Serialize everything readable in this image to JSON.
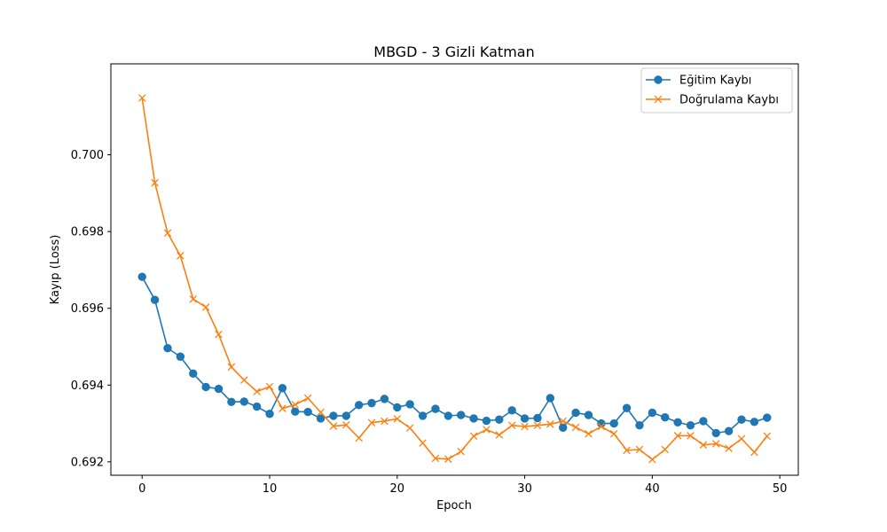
{
  "chart_data": {
    "type": "line",
    "title": "MBGD - 3 Gizli Katman",
    "xlabel": "Epoch",
    "ylabel": "Kayıp (Loss)",
    "xlim": [
      -2.45,
      51.45
    ],
    "ylim": [
      0.69165,
      0.70237
    ],
    "xticks": [
      0,
      10,
      20,
      30,
      40,
      50
    ],
    "yticks": [
      0.692,
      0.694,
      0.696,
      0.698,
      0.7
    ],
    "ytick_labels": [
      "0.692",
      "0.694",
      "0.696",
      "0.698",
      "0.700"
    ],
    "grid": false,
    "legend_position": "top-right",
    "x": [
      0,
      1,
      2,
      3,
      4,
      5,
      6,
      7,
      8,
      9,
      10,
      11,
      12,
      13,
      14,
      15,
      16,
      17,
      18,
      19,
      20,
      21,
      22,
      23,
      24,
      25,
      26,
      27,
      28,
      29,
      30,
      31,
      32,
      33,
      34,
      35,
      36,
      37,
      38,
      39,
      40,
      41,
      42,
      43,
      44,
      45,
      46,
      47,
      48,
      49
    ],
    "series": [
      {
        "name": "Eğitim Kaybı",
        "color": "#1f77b4",
        "marker": "circle",
        "values": [
          0.69682,
          0.69622,
          0.69496,
          0.69474,
          0.6943,
          0.69395,
          0.6939,
          0.69356,
          0.69357,
          0.69344,
          0.69325,
          0.69392,
          0.69331,
          0.6933,
          0.69313,
          0.6932,
          0.6932,
          0.69348,
          0.69353,
          0.69364,
          0.69342,
          0.6935,
          0.6932,
          0.69338,
          0.6932,
          0.69322,
          0.69313,
          0.69307,
          0.6931,
          0.69334,
          0.69313,
          0.69314,
          0.69366,
          0.69289,
          0.69328,
          0.69322,
          0.693,
          0.693,
          0.6934,
          0.69295,
          0.69328,
          0.69316,
          0.69303,
          0.69295,
          0.69306,
          0.69275,
          0.6928,
          0.6931,
          0.69304,
          0.69315
        ]
      },
      {
        "name": "Doğrulama Kaybı",
        "color": "#ff7f0e",
        "marker": "x",
        "values": [
          0.70148,
          0.69927,
          0.69796,
          0.69737,
          0.69624,
          0.69603,
          0.69532,
          0.69447,
          0.69413,
          0.69383,
          0.69396,
          0.69339,
          0.69349,
          0.69366,
          0.69329,
          0.69293,
          0.69296,
          0.69262,
          0.69302,
          0.69306,
          0.69312,
          0.69288,
          0.69249,
          0.69209,
          0.69207,
          0.69227,
          0.69267,
          0.69284,
          0.6927,
          0.69295,
          0.69292,
          0.69295,
          0.69298,
          0.69306,
          0.6929,
          0.69273,
          0.69292,
          0.69273,
          0.6923,
          0.69232,
          0.69206,
          0.69232,
          0.69268,
          0.69268,
          0.69244,
          0.69247,
          0.69235,
          0.6926,
          0.69225,
          0.69267
        ]
      }
    ]
  }
}
